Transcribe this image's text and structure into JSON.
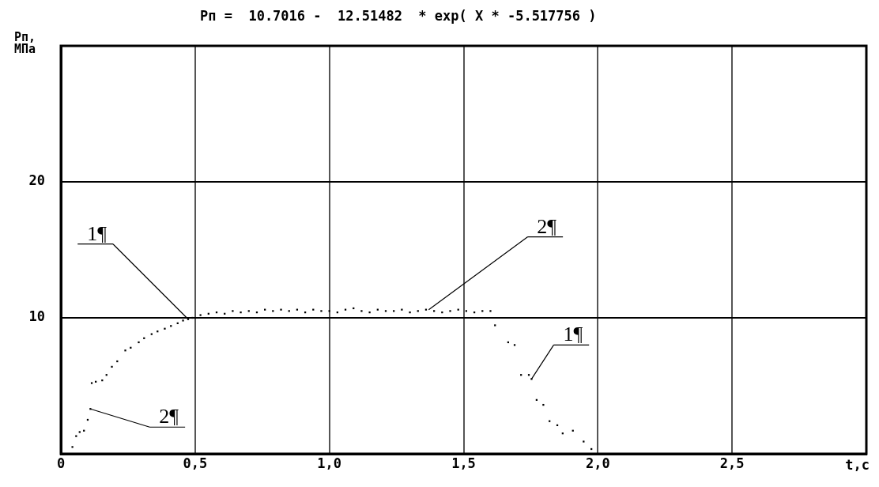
{
  "chart_data": {
    "type": "scatter",
    "title": "Pп =  10.7016 -  12.51482  * exp( X * -5.517756 )",
    "xlabel": "t,c",
    "ylabel": "Pп, МПа",
    "xlim": [
      0,
      3
    ],
    "xticks": [
      {
        "value": 0,
        "label": "0"
      },
      {
        "value": 0.5,
        "label": "0,5"
      },
      {
        "value": 1,
        "label": "1,0"
      },
      {
        "value": 1.5,
        "label": "1,5"
      },
      {
        "value": 2,
        "label": "2,0"
      },
      {
        "value": 2.5,
        "label": "2,5"
      }
    ],
    "ylim": [
      0,
      30
    ],
    "yticks": [
      10,
      20
    ],
    "grid": true,
    "marker": "square",
    "series": [
      {
        "color": "#000000",
        "x": [
          0.043,
          0.057,
          0.07,
          0.086,
          0.1,
          0.11,
          0.115,
          0.13,
          0.154,
          0.17,
          0.19,
          0.21,
          0.24,
          0.26,
          0.29,
          0.31,
          0.338,
          0.36,
          0.387,
          0.41,
          0.435,
          0.455,
          0.474,
          0.49,
          0.52,
          0.55,
          0.58,
          0.61,
          0.64,
          0.67,
          0.7,
          0.73,
          0.76,
          0.79,
          0.82,
          0.85,
          0.88,
          0.91,
          0.94,
          0.97,
          1.0,
          1.03,
          1.06,
          1.09,
          1.12,
          1.15,
          1.18,
          1.21,
          1.24,
          1.27,
          1.3,
          1.33,
          1.36,
          1.39,
          1.42,
          1.45,
          1.48,
          1.51,
          1.54,
          1.57,
          1.6,
          1.617,
          1.666,
          1.69,
          1.714,
          1.743,
          1.753,
          1.772,
          1.797,
          1.82,
          1.849,
          1.869,
          1.907,
          1.947,
          1.976
        ],
        "values": [
          0.5,
          1.3,
          1.6,
          1.7,
          2.5,
          3.3,
          5.2,
          5.3,
          5.4,
          5.8,
          6.4,
          6.8,
          7.6,
          7.8,
          8.2,
          8.5,
          8.8,
          9.0,
          9.2,
          9.4,
          9.6,
          9.8,
          9.9,
          10.0,
          10.2,
          10.3,
          10.4,
          10.3,
          10.5,
          10.4,
          10.5,
          10.4,
          10.6,
          10.5,
          10.6,
          10.5,
          10.6,
          10.4,
          10.6,
          10.5,
          10.5,
          10.4,
          10.6,
          10.7,
          10.5,
          10.4,
          10.6,
          10.5,
          10.5,
          10.6,
          10.4,
          10.5,
          10.6,
          10.5,
          10.4,
          10.5,
          10.6,
          10.5,
          10.4,
          10.5,
          10.5,
          9.45,
          8.2,
          8.0,
          5.8,
          5.8,
          5.5,
          3.96,
          3.6,
          2.4,
          2.1,
          1.5,
          1.7,
          0.9,
          0.35
        ]
      }
    ],
    "annotations": [
      {
        "text": "1¶",
        "x": 0.474,
        "y": 9.9
      },
      {
        "text": "2¶",
        "x": 1.37,
        "y": 10.6
      },
      {
        "text": "1¶",
        "x": 1.753,
        "y": 5.5
      },
      {
        "text": "2¶",
        "x": 0.11,
        "y": 3.3
      }
    ]
  }
}
